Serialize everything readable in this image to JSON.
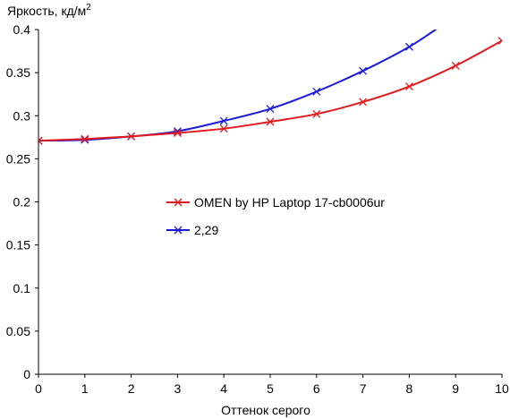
{
  "chart_data": {
    "type": "line",
    "ylabel": "Яркость, кд/м",
    "ylabel_sup": "2",
    "xlabel": "Оттенок серого",
    "xlim": [
      0,
      10
    ],
    "ylim": [
      0,
      0.4
    ],
    "x_ticks": [
      "0",
      "1",
      "2",
      "3",
      "4",
      "5",
      "6",
      "7",
      "8",
      "9",
      "10"
    ],
    "y_ticks": [
      "0",
      "0.05",
      "0.1",
      "0.15",
      "0.2",
      "0.25",
      "0.3",
      "0.35",
      "0.4"
    ],
    "grid": false,
    "legend_position": "center",
    "series": [
      {
        "name": "OMEN by HP Laptop 17-cb0006ur",
        "color": "#e31a1c",
        "marker": "x",
        "x": [
          0,
          1,
          2,
          3,
          4,
          5,
          6,
          7,
          8,
          9,
          10
        ],
        "y": [
          0.271,
          0.273,
          0.276,
          0.28,
          0.285,
          0.293,
          0.302,
          0.316,
          0.334,
          0.358,
          0.387
        ]
      },
      {
        "name": "2,29",
        "color": "#1a1adc",
        "marker": "x",
        "x": [
          0,
          1,
          2,
          3,
          4,
          5,
          6,
          7,
          8,
          8.73
        ],
        "y": [
          0.271,
          0.272,
          0.276,
          0.282,
          0.294,
          0.308,
          0.328,
          0.352,
          0.38,
          0.406
        ],
        "marker_count": 9
      }
    ]
  }
}
